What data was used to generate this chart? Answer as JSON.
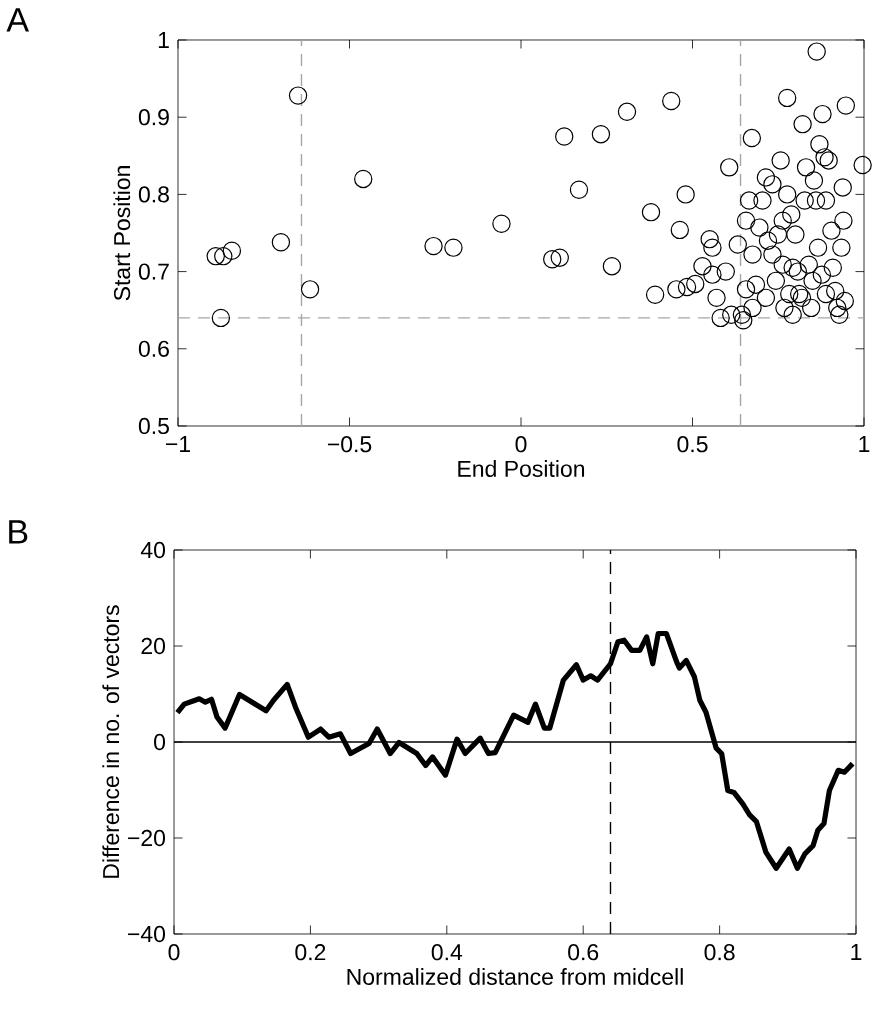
{
  "chart_data": [
    {
      "type": "scatter",
      "xlabel": "End Position",
      "ylabel": "Start Position",
      "annotations": [
        "A"
      ],
      "marker": "circle",
      "grid": false,
      "xlim": [
        -1,
        1
      ],
      "ylim": [
        0.5,
        1
      ],
      "xticks": [
        {
          "value": -1,
          "label": "−1"
        },
        {
          "value": -0.5,
          "label": "−0.5"
        },
        0,
        0.5,
        1
      ],
      "yticks": [
        0.5,
        0.6,
        0.7,
        0.8,
        0.9,
        1
      ],
      "ref_lines": [
        {
          "axis": "x",
          "value": -0.64,
          "color": "#a6a6a6",
          "line_style": "dashed"
        },
        {
          "axis": "x",
          "value": 0.64,
          "color": "#a6a6a6",
          "line_style": "dashed"
        },
        {
          "axis": "y",
          "value": 0.64,
          "color": "#a6a6a6",
          "line_style": "dashed"
        }
      ],
      "series": [
        {
          "color": "#000000",
          "x": [
            -0.89,
            -0.868,
            -0.843,
            -0.875,
            -0.65,
            -0.7,
            -0.615,
            -0.46,
            -0.255,
            -0.197,
            -0.057,
            0.126,
            0.233,
            0.309,
            0.438,
            0.862,
            0.169,
            0.091,
            0.113,
            0.265,
            0.379,
            0.48,
            0.463,
            0.391,
            0.607,
            0.673,
            0.776,
            0.821,
            0.879,
            0.947,
            0.996,
            0.453,
            0.484,
            0.508,
            0.529,
            0.55,
            0.558,
            0.57,
            0.582,
            0.597,
            0.613,
            0.632,
            0.644,
            0.648,
            0.656,
            0.665,
            0.675,
            0.685,
            0.695,
            0.704,
            0.714,
            0.72,
            0.733,
            0.743,
            0.749,
            0.757,
            0.763,
            0.768,
            0.776,
            0.782,
            0.788,
            0.792,
            0.8,
            0.807,
            0.811,
            0.819,
            0.827,
            0.831,
            0.839,
            0.846,
            0.854,
            0.86,
            0.866,
            0.87,
            0.877,
            0.885,
            0.889,
            0.897,
            0.905,
            0.909,
            0.916,
            0.922,
            0.928,
            0.934,
            0.938,
            0.94,
            0.944,
            0.656,
            0.733,
            0.763,
            0.792,
            0.675,
            0.558,
            0.889,
            0.85,
            0.714
          ],
          "values": [
            0.72,
            0.72,
            0.727,
            0.64,
            0.928,
            0.738,
            0.677,
            0.82,
            0.733,
            0.731,
            0.762,
            0.875,
            0.878,
            0.907,
            0.921,
            0.985,
            0.806,
            0.716,
            0.718,
            0.707,
            0.777,
            0.8,
            0.754,
            0.67,
            0.835,
            0.873,
            0.925,
            0.891,
            0.904,
            0.915,
            0.838,
            0.677,
            0.68,
            0.684,
            0.707,
            0.742,
            0.696,
            0.666,
            0.64,
            0.7,
            0.644,
            0.735,
            0.644,
            0.637,
            0.677,
            0.792,
            0.722,
            0.683,
            0.757,
            0.792,
            0.666,
            0.74,
            0.813,
            0.688,
            0.748,
            0.844,
            0.709,
            0.653,
            0.8,
            0.671,
            0.774,
            0.644,
            0.748,
            0.7,
            0.671,
            0.666,
            0.792,
            0.835,
            0.709,
            0.653,
            0.818,
            0.792,
            0.731,
            0.865,
            0.696,
            0.848,
            0.671,
            0.844,
            0.753,
            0.705,
            0.675,
            0.653,
            0.644,
            0.731,
            0.809,
            0.766,
            0.662,
            0.766,
            0.722,
            0.766,
            0.705,
            0.653,
            0.731,
            0.792,
            0.688,
            0.822
          ]
        }
      ]
    },
    {
      "type": "line",
      "xlabel": "Normalized distance from midcell",
      "ylabel": "Difference in no. of vectors",
      "annotations": [
        "B"
      ],
      "grid": false,
      "line_style": "solid",
      "xlim": [
        0,
        1
      ],
      "ylim": [
        -40,
        40
      ],
      "xticks": [
        0,
        0.2,
        0.4,
        0.6,
        0.8,
        1
      ],
      "yticks": [
        {
          "value": -40,
          "label": "−40"
        },
        {
          "value": -20,
          "label": "−20"
        },
        0,
        20,
        40
      ],
      "ref_lines": [
        {
          "axis": "x",
          "value": 0.64,
          "color": "#000000",
          "line_style": "dashed"
        },
        {
          "axis": "y",
          "value": 0,
          "color": "#000000",
          "line_style": "solid"
        }
      ],
      "series": [
        {
          "color": "#000000",
          "x": [
            0.005,
            0.015,
            0.029,
            0.037,
            0.046,
            0.055,
            0.063,
            0.075,
            0.096,
            0.135,
            0.146,
            0.166,
            0.178,
            0.197,
            0.215,
            0.227,
            0.244,
            0.259,
            0.273,
            0.286,
            0.298,
            0.317,
            0.33,
            0.356,
            0.369,
            0.379,
            0.398,
            0.415,
            0.427,
            0.449,
            0.461,
            0.471,
            0.498,
            0.519,
            0.53,
            0.543,
            0.551,
            0.571,
            0.59,
            0.6,
            0.611,
            0.621,
            0.64,
            0.651,
            0.66,
            0.671,
            0.683,
            0.693,
            0.702,
            0.71,
            0.722,
            0.737,
            0.741,
            0.751,
            0.763,
            0.771,
            0.78,
            0.795,
            0.803,
            0.812,
            0.821,
            0.834,
            0.844,
            0.854,
            0.868,
            0.883,
            0.902,
            0.914,
            0.925,
            0.937,
            0.944,
            0.953,
            0.961,
            0.974,
            0.983,
            0.995
          ],
          "values": [
            6.1,
            7.9,
            8.6,
            9.0,
            8.3,
            8.9,
            5.2,
            2.9,
            9.9,
            6.5,
            8.7,
            12.0,
            7.3,
            1.0,
            2.7,
            1.0,
            1.7,
            -2.4,
            -1.3,
            -0.3,
            2.7,
            -2.4,
            -0.1,
            -2.4,
            -4.9,
            -3.1,
            -6.9,
            0.6,
            -2.4,
            0.8,
            -2.4,
            -2.2,
            5.6,
            4.1,
            7.9,
            2.9,
            2.9,
            12.9,
            16.1,
            12.9,
            13.8,
            12.9,
            16.3,
            20.9,
            21.2,
            19.1,
            19.1,
            21.9,
            16.3,
            22.6,
            22.6,
            16.7,
            15.4,
            17.0,
            13.6,
            8.7,
            6.2,
            -1.3,
            -2.4,
            -10.1,
            -10.5,
            -12.9,
            -15.2,
            -16.6,
            -23.0,
            -26.3,
            -22.3,
            -26.3,
            -23.3,
            -21.6,
            -18.4,
            -17.0,
            -10.1,
            -5.9,
            -6.3,
            -4.5
          ]
        }
      ]
    }
  ]
}
